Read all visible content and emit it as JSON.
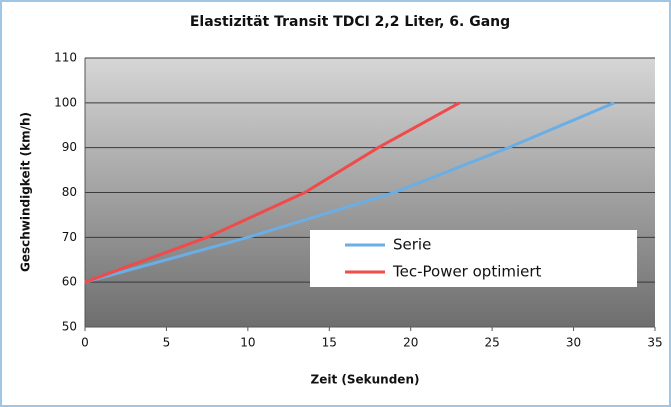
{
  "chart_data": {
    "type": "line",
    "title": "Elastizität Transit TDCI 2,2 Liter, 6. Gang",
    "x_label": "Zeit (Sekunden)",
    "y_label": "Geschwindigkeit (km/h)",
    "xlim": [
      0,
      35
    ],
    "xticks": [
      0,
      5,
      10,
      15,
      20,
      25,
      30,
      35
    ],
    "ylim": [
      50,
      110
    ],
    "yticks": [
      50,
      60,
      70,
      80,
      90,
      100,
      110
    ],
    "grid": true,
    "series": [
      {
        "name": "Serie",
        "color": "#6aaee6",
        "x": [
          0,
          10,
          19,
          26,
          32.5
        ],
        "values": [
          60,
          70,
          80,
          90,
          100
        ]
      },
      {
        "name": "Tec-Power optimiert",
        "color": "#f04a4a",
        "x": [
          0,
          7.5,
          13.5,
          18,
          23
        ],
        "values": [
          60,
          70,
          80,
          90,
          100
        ]
      }
    ]
  }
}
